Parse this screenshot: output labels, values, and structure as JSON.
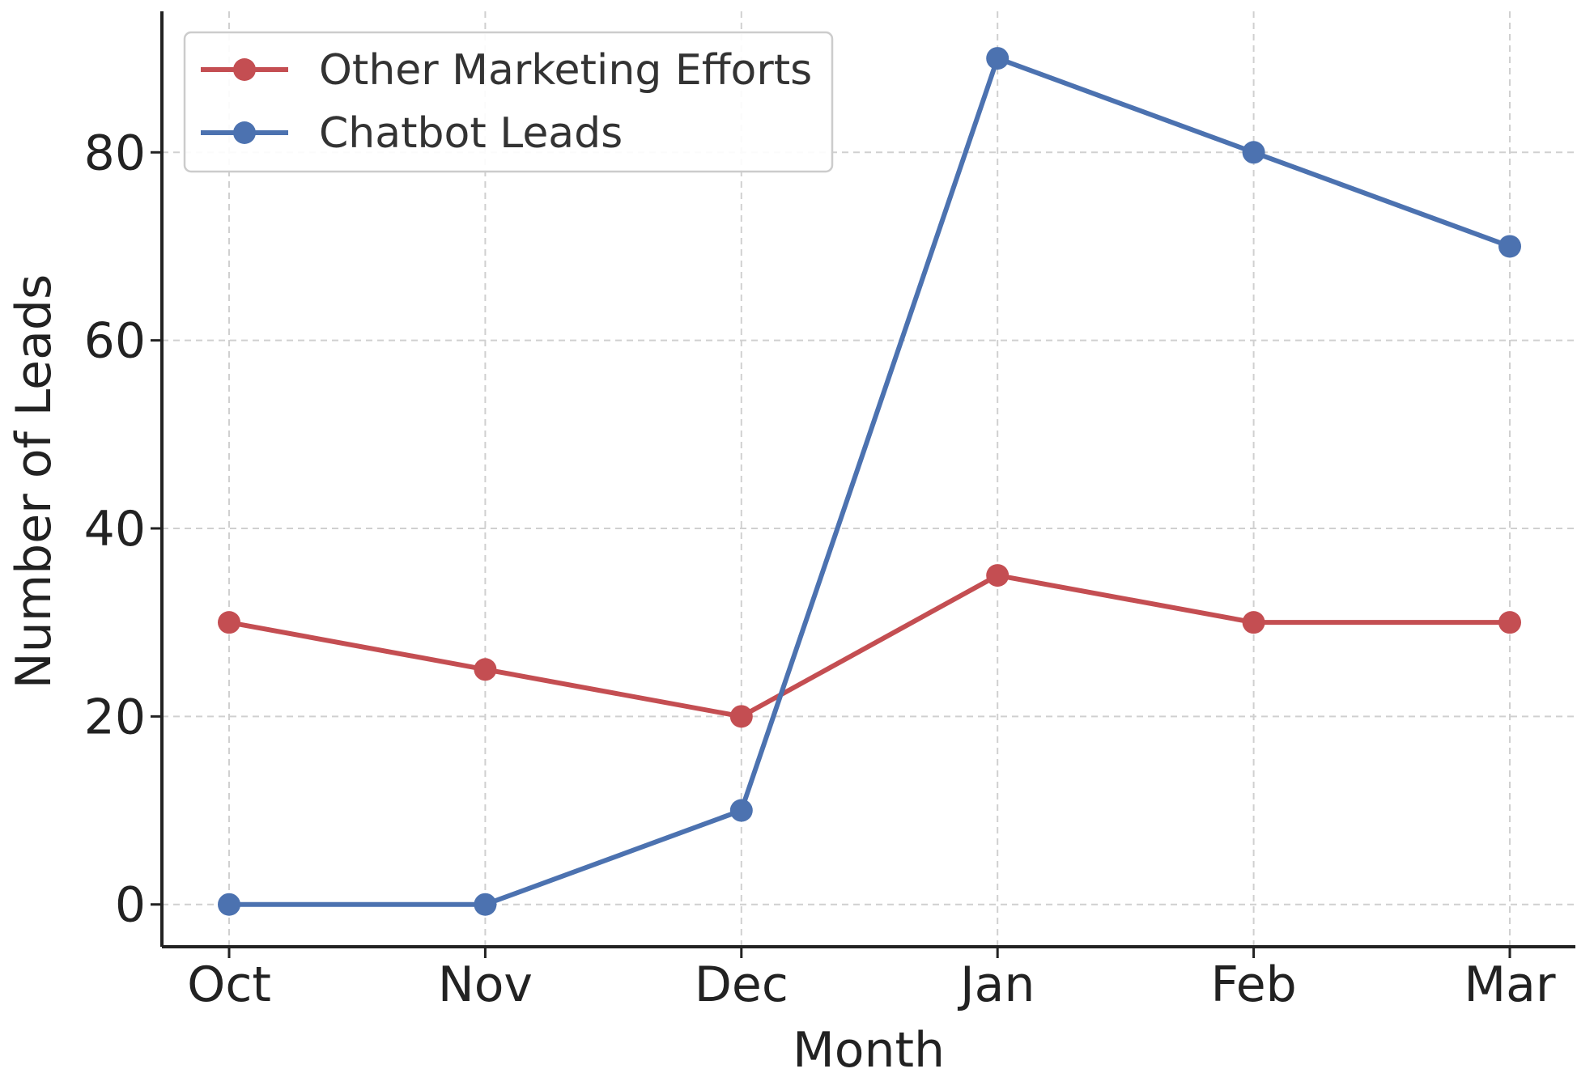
{
  "chart_data": {
    "type": "line",
    "title": "",
    "xlabel": "Month",
    "ylabel": "Number of Leads",
    "categories": [
      "Oct",
      "Nov",
      "Dec",
      "Jan",
      "Feb",
      "Mar"
    ],
    "yticks": [
      0,
      20,
      40,
      60,
      80
    ],
    "ylim": [
      -4.5,
      95
    ],
    "grid": true,
    "legend": "upper-left",
    "series": [
      {
        "name": "Other Marketing Efforts",
        "color": "#c44e52",
        "values": [
          30,
          25,
          20,
          35,
          30,
          30
        ]
      },
      {
        "name": "Chatbot Leads",
        "color": "#4c72b0",
        "values": [
          0,
          0,
          10,
          90,
          80,
          70
        ]
      }
    ]
  }
}
